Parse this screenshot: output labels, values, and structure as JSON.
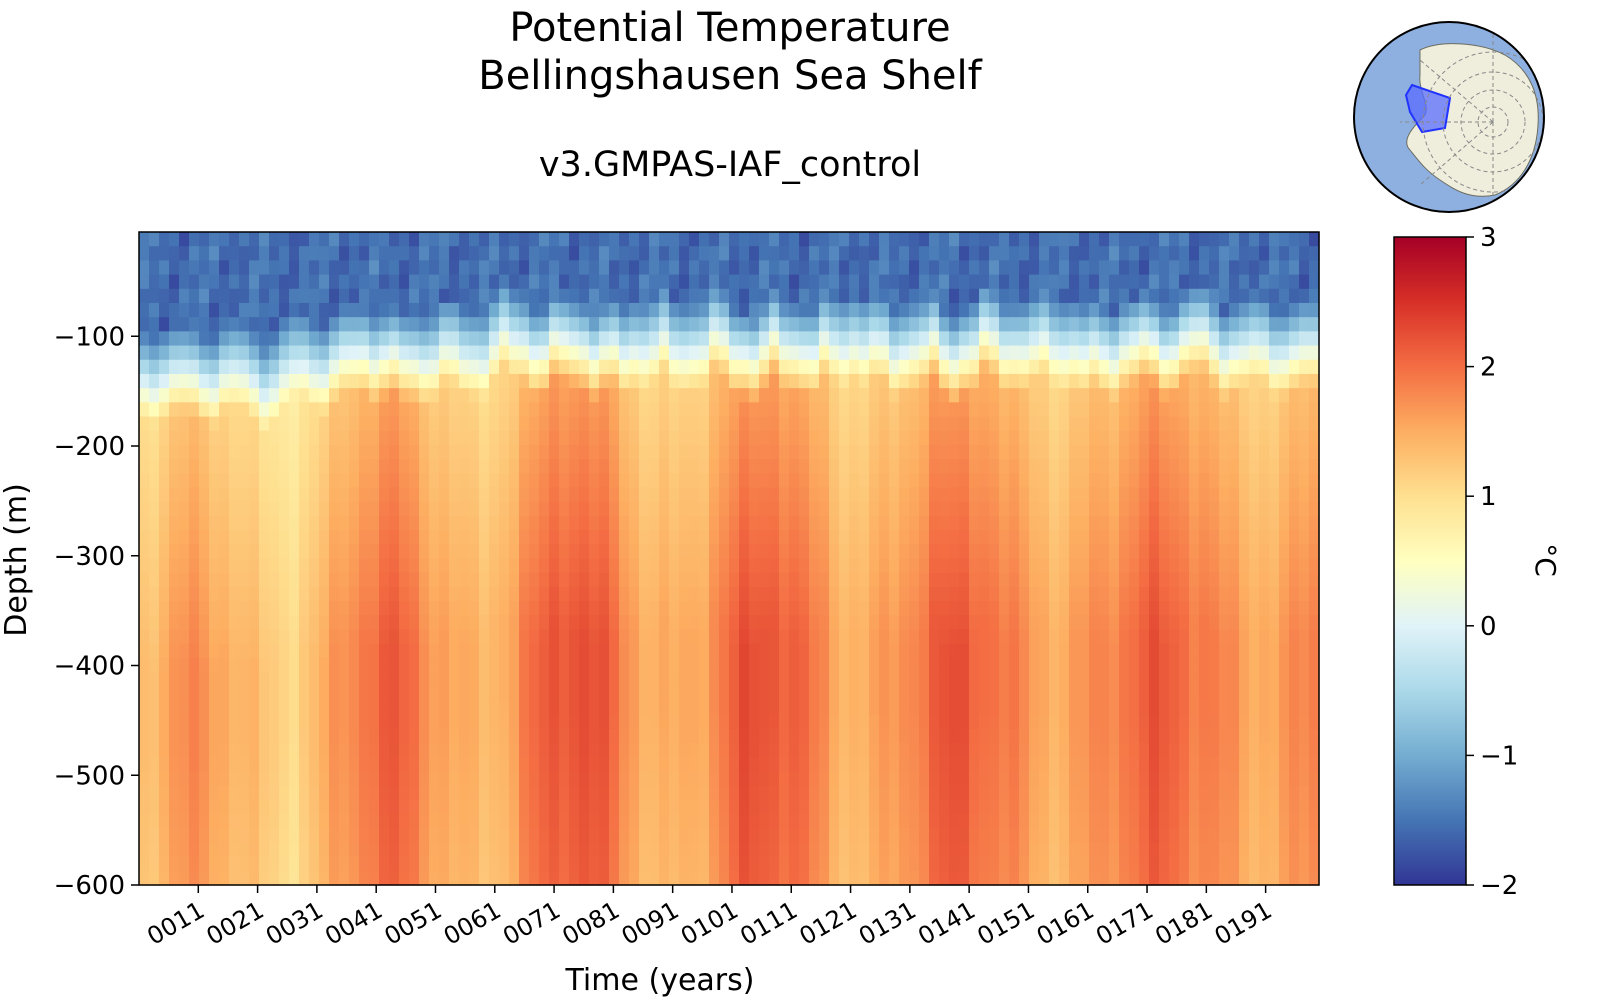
{
  "chart_data": {
    "type": "heatmap",
    "title": [
      "Potential Temperature",
      "Bellingshausen Sea Shelf"
    ],
    "subtitle": "v3.GMPAS-IAF_control",
    "xlabel": "Time (years)",
    "ylabel": "Depth (m)",
    "x_ticks": [
      "0011",
      "0021",
      "0031",
      "0041",
      "0051",
      "0061",
      "0071",
      "0081",
      "0091",
      "0101",
      "0111",
      "0121",
      "0131",
      "0141",
      "0151",
      "0161",
      "0171",
      "0181",
      "0191"
    ],
    "x_tick_years": [
      11,
      21,
      31,
      41,
      51,
      61,
      71,
      81,
      91,
      101,
      111,
      121,
      131,
      141,
      151,
      161,
      171,
      181,
      191
    ],
    "xlim": [
      1,
      200
    ],
    "y_ticks": [
      -100,
      -200,
      -300,
      -400,
      -500,
      -600
    ],
    "y_tick_labels": [
      "−100",
      "−200",
      "−300",
      "−400",
      "−500",
      "−600"
    ],
    "ylim": [
      -600,
      -5
    ],
    "colorbar": {
      "label": "°C",
      "ticks": [
        3,
        2,
        1,
        0,
        -1,
        -2
      ],
      "tick_labels": [
        "3",
        "2",
        "1",
        "0",
        "−1",
        "−2"
      ],
      "vmin": -2,
      "vmax": 3,
      "colormap": "RdYlBu_r"
    },
    "description_values": {
      "surface_temp_approx": -1.6,
      "thermocline_depth_approx": [
        -100,
        -200
      ],
      "deep_temp_range": [
        1.0,
        2.2
      ]
    }
  },
  "inset_map": {
    "name": "Antarctica region map",
    "highlight_color": "#3344ff",
    "ocean_color": "#8eb0e0",
    "land_color": "#efeedd"
  }
}
